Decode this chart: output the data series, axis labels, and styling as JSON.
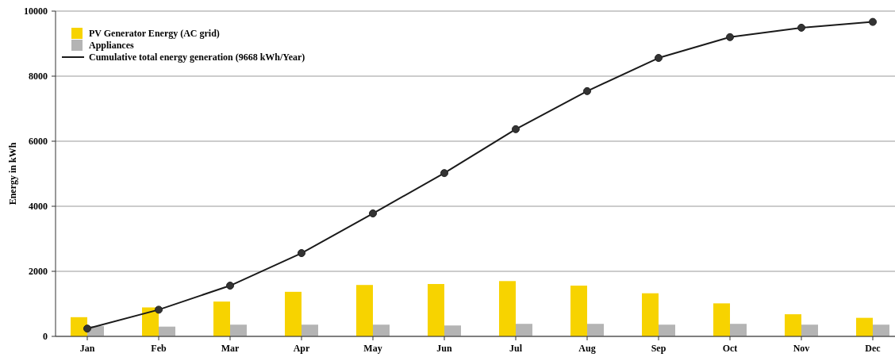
{
  "chart_data": {
    "type": "bar",
    "ylabel": "Energy in kWh",
    "categories": [
      "Jan",
      "Feb",
      "Mar",
      "Apr",
      "May",
      "Jun",
      "Jul",
      "Aug",
      "Sep",
      "Oct",
      "Nov",
      "Dec"
    ],
    "ylim": [
      0,
      10000
    ],
    "yticks": [
      0,
      2000,
      4000,
      6000,
      8000,
      10000
    ],
    "grid": "y",
    "legend": "top left",
    "marker": "circle",
    "series": [
      {
        "name": "PV Generator Energy (AC grid)",
        "color": "#f7d300",
        "values": [
          590,
          890,
          1070,
          1370,
          1580,
          1610,
          1700,
          1560,
          1325,
          1015,
          680,
          570
        ]
      },
      {
        "name": "Appliances",
        "color": "#b4b4b4",
        "values": [
          315,
          300,
          360,
          360,
          360,
          335,
          385,
          385,
          360,
          385,
          360,
          360
        ]
      },
      {
        "name": "Cumulative total energy generation (9668 kWh/Year)",
        "type": "line",
        "color": "#1a1a1a",
        "values": [
          240,
          820,
          1560,
          2560,
          3780,
          5020,
          6370,
          7540,
          8560,
          9200,
          9490,
          9668
        ]
      }
    ]
  }
}
